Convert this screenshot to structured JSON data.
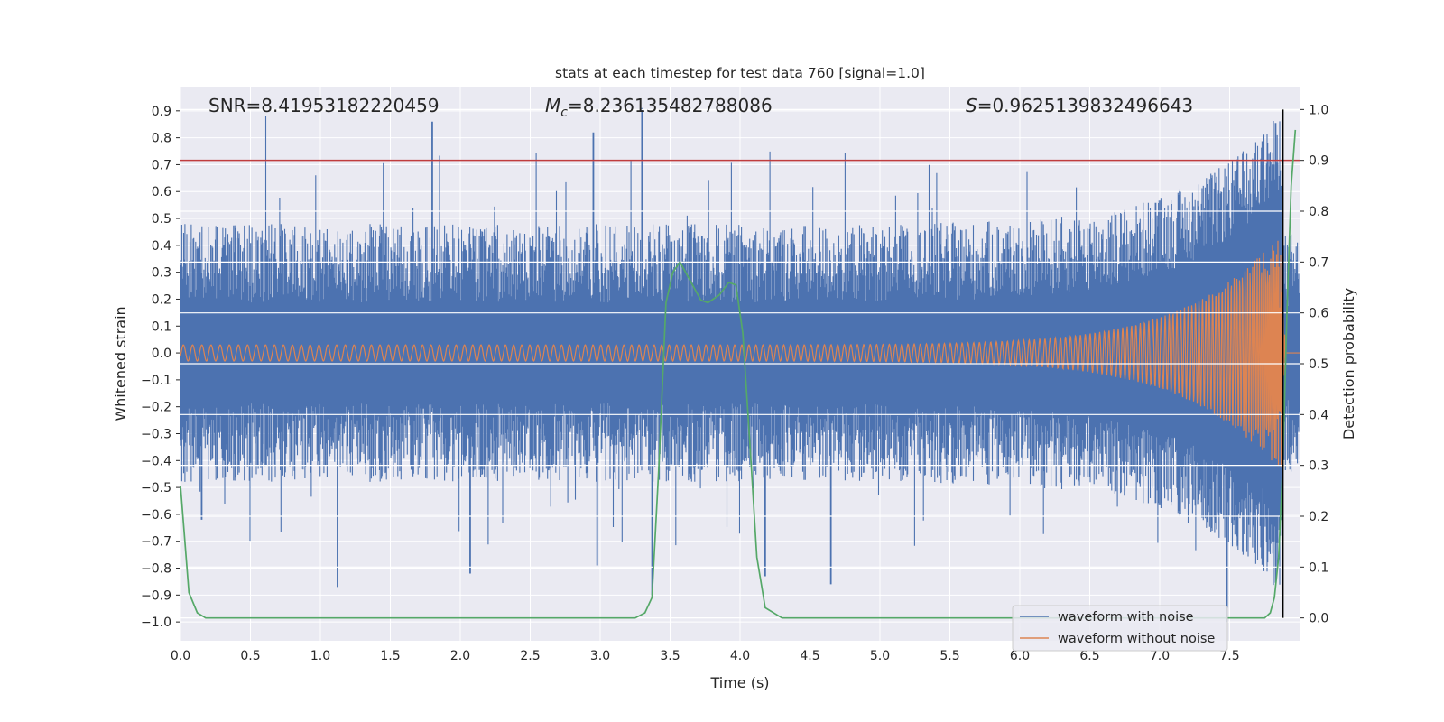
{
  "chart_data": {
    "type": "line",
    "title": "stats at each timestep for test data 760 [signal=1.0]",
    "xlabel": "Time (s)",
    "ylabel": "Whitened strain",
    "y2label": "Detection probability",
    "xlim": [
      0.0,
      8.0
    ],
    "ylim": [
      -1.07,
      0.99
    ],
    "y2lim": [
      -0.045,
      1.045
    ],
    "x_ticks": [
      0.0,
      0.5,
      1.0,
      1.5,
      2.0,
      2.5,
      3.0,
      3.5,
      4.0,
      4.5,
      5.0,
      5.5,
      6.0,
      6.5,
      7.0,
      7.5
    ],
    "y_ticks": [
      0.9,
      0.8,
      0.7,
      0.6,
      0.5,
      0.4,
      0.3,
      0.2,
      0.1,
      0.0,
      -0.1,
      -0.2,
      -0.3,
      -0.4,
      -0.5,
      -0.6,
      -0.7,
      -0.8,
      -0.9,
      -1.0
    ],
    "y2_ticks": [
      1.0,
      0.9,
      0.8,
      0.7,
      0.6,
      0.5,
      0.4,
      0.3,
      0.2,
      0.1,
      0.0
    ],
    "annotations": {
      "snr": "SNR=8.41953182220459",
      "mc": "=8.236135482788086",
      "mc_symbol": "M",
      "mc_sub": "c",
      "s": "=0.9625139832496643",
      "s_symbol": "S"
    },
    "threshold_prob": 0.9,
    "event_time": 7.88,
    "noise_envelope": {
      "typical_max": 0.45,
      "peaks": [
        [
          0.61,
          0.88
        ],
        [
          1.8,
          0.86
        ],
        [
          2.95,
          0.82
        ],
        [
          3.3,
          0.91
        ],
        [
          0.15,
          -0.62
        ],
        [
          1.12,
          -0.87
        ],
        [
          2.07,
          -0.82
        ],
        [
          2.98,
          -0.79
        ],
        [
          3.37,
          -0.9
        ],
        [
          4.18,
          -0.83
        ],
        [
          4.65,
          -0.86
        ],
        [
          7.48,
          -1.0
        ]
      ]
    },
    "series": [
      {
        "name": "waveform with noise",
        "color": "#4c72b0"
      },
      {
        "name": "waveform without noise",
        "color": "#dd8452",
        "chirp": {
          "t_merge": 7.87,
          "start_amp": 0.03,
          "end_amp": 0.45,
          "ringdown_end": 7.9
        }
      },
      {
        "name": "detection probability",
        "color": "#55a868",
        "x": [
          0.0,
          0.06,
          0.12,
          0.18,
          0.25,
          0.4,
          0.55,
          0.62,
          0.75,
          1.0,
          1.5,
          2.0,
          2.5,
          3.0,
          3.25,
          3.32,
          3.37,
          3.42,
          3.47,
          3.52,
          3.57,
          3.65,
          3.72,
          3.77,
          3.85,
          3.92,
          3.97,
          4.02,
          4.08,
          4.12,
          4.18,
          4.3,
          5.0,
          6.0,
          7.0,
          7.5,
          7.75,
          7.79,
          7.82,
          7.85,
          7.88,
          7.91,
          7.94,
          7.97
        ],
        "y": [
          0.26,
          0.05,
          0.01,
          0.0,
          0.0,
          0.0,
          0.0,
          0.0,
          0.0,
          0.0,
          0.0,
          0.0,
          0.0,
          0.0,
          0.0,
          0.01,
          0.04,
          0.3,
          0.62,
          0.68,
          0.7,
          0.66,
          0.625,
          0.62,
          0.635,
          0.66,
          0.655,
          0.56,
          0.3,
          0.12,
          0.02,
          0.0,
          0.0,
          0.0,
          0.0,
          0.0,
          0.0,
          0.01,
          0.04,
          0.12,
          0.3,
          0.6,
          0.85,
          0.96
        ]
      }
    ],
    "legend": {
      "position": "lower-right",
      "entries": [
        "waveform with noise",
        "waveform without noise"
      ]
    }
  }
}
